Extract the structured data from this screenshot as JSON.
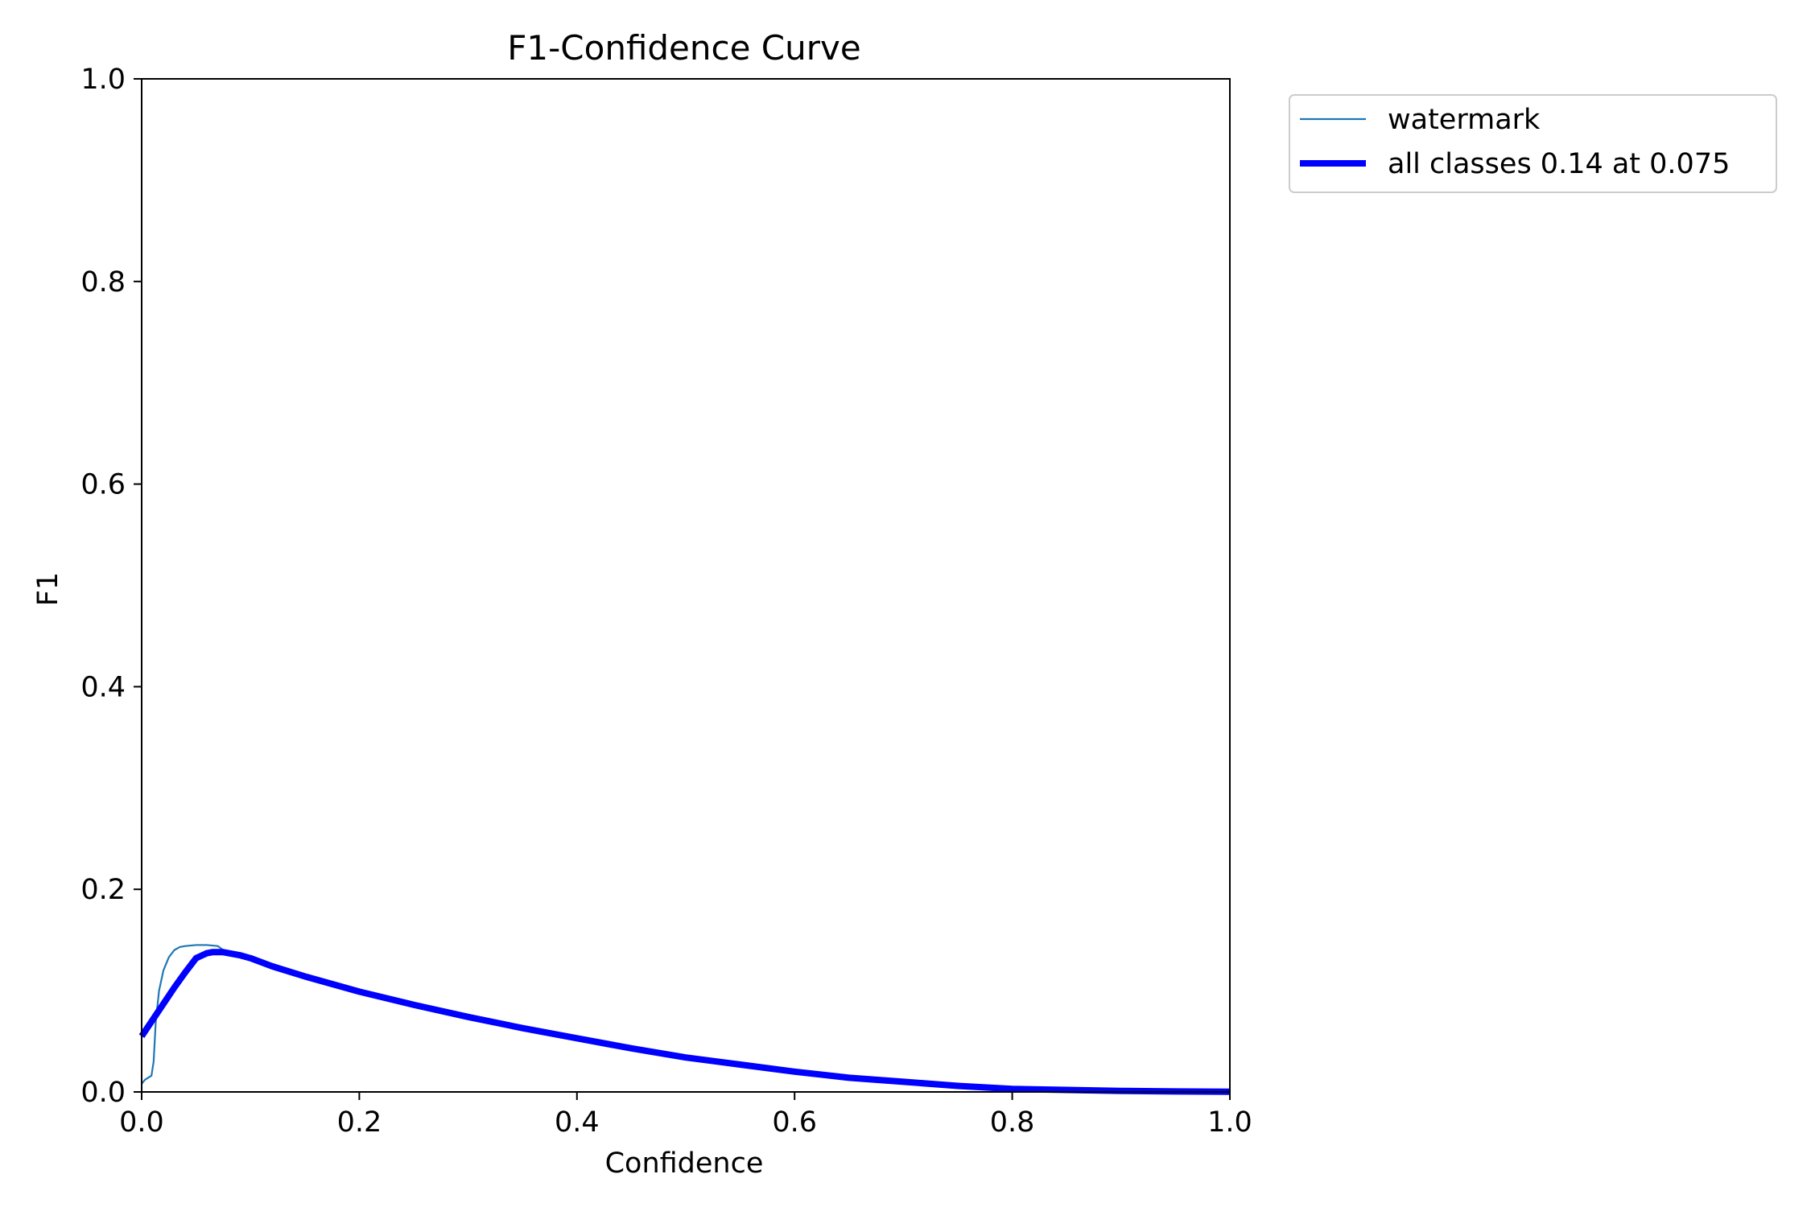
{
  "chart_data": {
    "type": "line",
    "title": "F1-Confidence Curve",
    "xlabel": "Confidence",
    "ylabel": "F1",
    "xlim": [
      0.0,
      1.0
    ],
    "ylim": [
      0.0,
      1.0
    ],
    "xticks": [
      "0.0",
      "0.2",
      "0.4",
      "0.6",
      "0.8",
      "1.0"
    ],
    "yticks": [
      "0.0",
      "0.2",
      "0.4",
      "0.6",
      "0.8",
      "1.0"
    ],
    "grid": false,
    "legend_position": "outside-top-right",
    "series": [
      {
        "name": "watermark",
        "color": "#1f77b4",
        "style": "thin",
        "x": [
          0.0,
          0.003,
          0.006,
          0.009,
          0.011,
          0.013,
          0.016,
          0.02,
          0.025,
          0.03,
          0.035,
          0.04,
          0.05,
          0.06,
          0.07,
          0.075,
          0.08,
          0.09,
          0.1,
          0.12,
          0.15,
          0.2,
          0.25,
          0.3,
          0.35,
          0.4,
          0.45,
          0.5,
          0.55,
          0.6,
          0.65,
          0.7,
          0.75,
          0.8,
          0.85,
          0.9,
          0.95,
          1.0
        ],
        "y": [
          0.008,
          0.012,
          0.014,
          0.016,
          0.03,
          0.07,
          0.1,
          0.12,
          0.133,
          0.14,
          0.143,
          0.144,
          0.145,
          0.145,
          0.144,
          0.14,
          0.138,
          0.135,
          0.132,
          0.124,
          0.114,
          0.099,
          0.086,
          0.074,
          0.063,
          0.053,
          0.043,
          0.034,
          0.027,
          0.02,
          0.014,
          0.01,
          0.006,
          0.003,
          0.002,
          0.001,
          0.0005,
          0.0002
        ]
      },
      {
        "name": "all classes 0.14 at 0.075",
        "color": "#0000ff",
        "style": "thick",
        "x": [
          0.0,
          0.01,
          0.02,
          0.03,
          0.04,
          0.05,
          0.06,
          0.065,
          0.07,
          0.075,
          0.08,
          0.09,
          0.1,
          0.12,
          0.15,
          0.2,
          0.25,
          0.3,
          0.35,
          0.4,
          0.45,
          0.5,
          0.55,
          0.6,
          0.65,
          0.7,
          0.75,
          0.8,
          0.85,
          0.9,
          0.95,
          1.0
        ],
        "y": [
          0.055,
          0.071,
          0.087,
          0.103,
          0.118,
          0.132,
          0.137,
          0.138,
          0.138,
          0.138,
          0.137,
          0.135,
          0.132,
          0.124,
          0.114,
          0.099,
          0.086,
          0.074,
          0.063,
          0.053,
          0.043,
          0.034,
          0.027,
          0.02,
          0.014,
          0.01,
          0.006,
          0.003,
          0.002,
          0.001,
          0.0005,
          0.0002
        ]
      }
    ]
  }
}
